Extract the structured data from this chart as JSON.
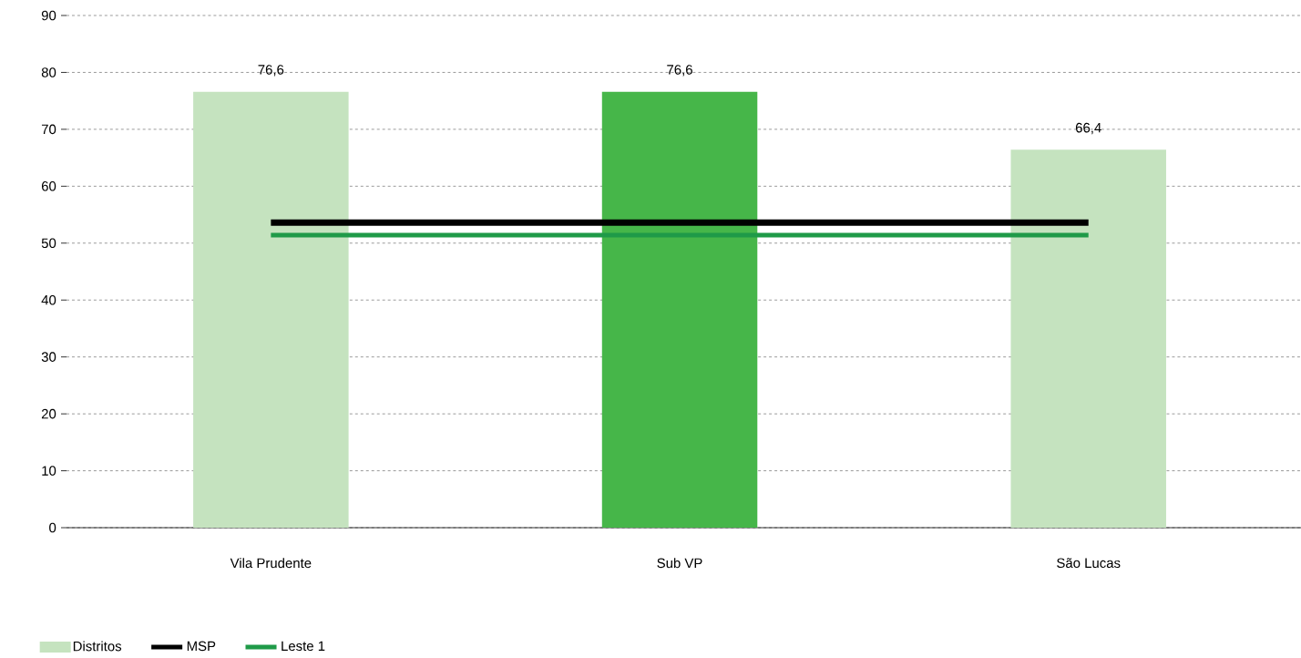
{
  "chart_data": {
    "type": "bar",
    "categories": [
      "Vila Prudente",
      "Sub VP",
      "São Lucas"
    ],
    "series": [
      {
        "name": "Distritos",
        "color": "#c5e3bf",
        "colors": [
          "#c5e3bf",
          "#46b649",
          "#c5e3bf"
        ],
        "values": [
          76.6,
          76.6,
          66.4
        ],
        "value_labels": [
          "76,6",
          "76,6",
          "66,4"
        ]
      },
      {
        "name": "MSP",
        "type": "line",
        "color": "#000000",
        "values": [
          53.6,
          53.6,
          53.6
        ]
      },
      {
        "name": "Leste 1",
        "type": "line",
        "color": "#1f9a48",
        "values": [
          51.4,
          51.4,
          51.4
        ]
      }
    ],
    "ylim": [
      0,
      90
    ],
    "yticks": [
      0,
      10,
      20,
      30,
      40,
      50,
      60,
      70,
      80,
      90
    ],
    "grid": "y",
    "legend": "bottom"
  }
}
